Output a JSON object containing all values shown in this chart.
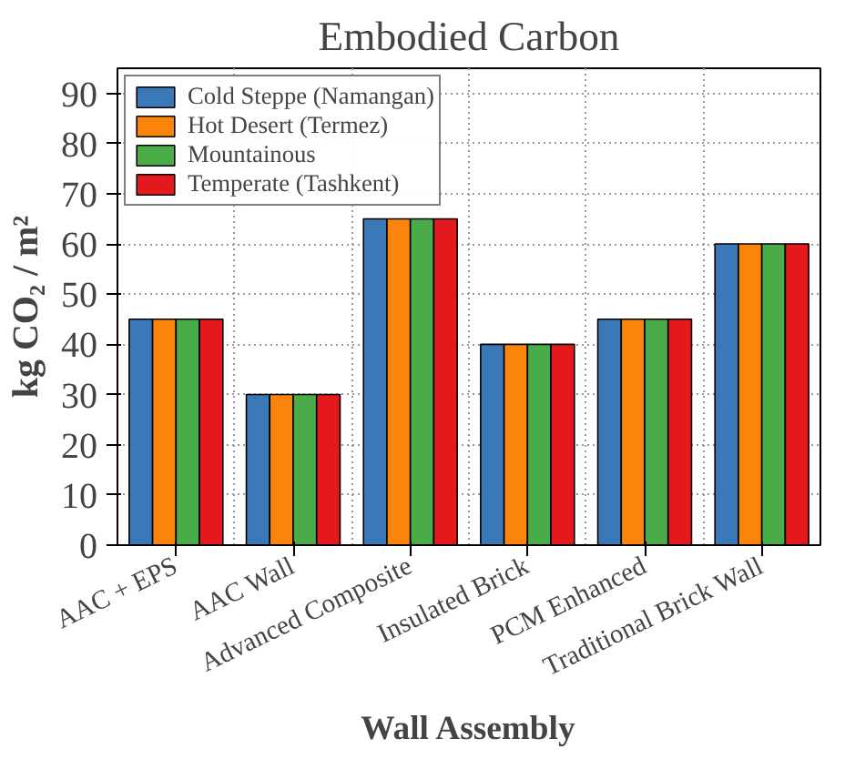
{
  "chart_data": {
    "type": "bar",
    "title": "Embodied Carbon",
    "xlabel": "Wall Assembly",
    "ylabel": "kg CO₂ / m²",
    "categories": [
      "AAC + EPS",
      "AAC Wall",
      "Advanced Composite",
      "Insulated Brick",
      "PCM Enhanced",
      "Traditional Brick Wall"
    ],
    "series": [
      {
        "name": "Cold Steppe (Namangan)",
        "color": "#3a78b8",
        "values": [
          45,
          30,
          65,
          40,
          45,
          60
        ]
      },
      {
        "name": "Hot Desert (Termez)",
        "color": "#fb840c",
        "values": [
          45,
          30,
          65,
          40,
          45,
          60
        ]
      },
      {
        "name": "Mountainous",
        "color": "#4aac48",
        "values": [
          45,
          30,
          65,
          40,
          45,
          60
        ]
      },
      {
        "name": "Temperate (Tashkent)",
        "color": "#e3191e",
        "values": [
          45,
          30,
          65,
          40,
          45,
          60
        ]
      }
    ],
    "ylim": [
      0,
      95
    ],
    "yticks": [
      0,
      10,
      20,
      30,
      40,
      50,
      60,
      70,
      80,
      90
    ],
    "grid": true,
    "legend": "top left"
  }
}
